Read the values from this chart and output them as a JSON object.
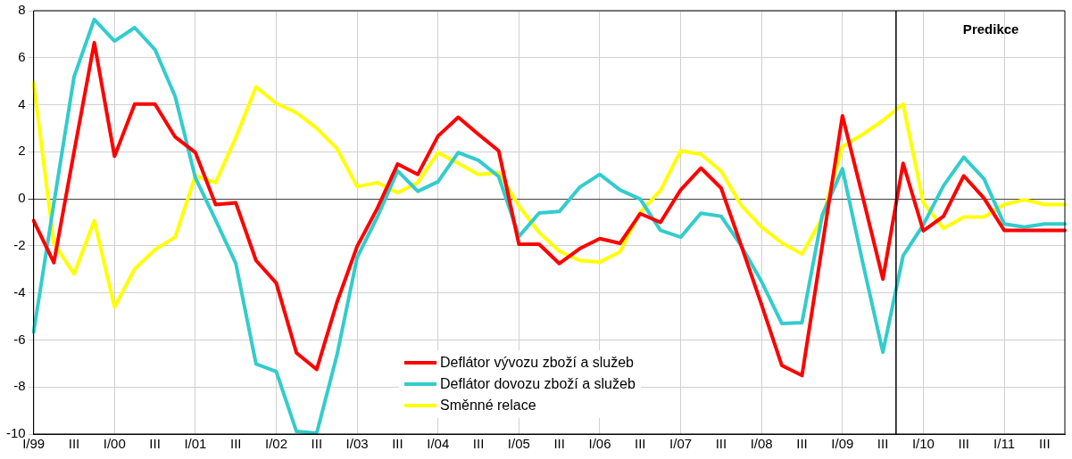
{
  "chart_data": {
    "type": "line",
    "categories": [
      "I/99",
      null,
      "III",
      null,
      "I/00",
      null,
      "III",
      null,
      "I/01",
      null,
      "III",
      null,
      "I/02",
      null,
      "III",
      null,
      "I/03",
      null,
      "III",
      null,
      "I/04",
      null,
      "III",
      null,
      "I/05",
      null,
      "III",
      null,
      "I/06",
      null,
      "III",
      null,
      "I/07",
      null,
      "III",
      null,
      "I/08",
      null,
      "III",
      null,
      "I/09",
      null,
      "III",
      null,
      "I/10",
      null,
      "III",
      null,
      "I/11",
      null,
      "III",
      null
    ],
    "series": [
      {
        "name": "Deflátor vývozu zboží a služeb",
        "color": "#ff0000",
        "values": [
          -0.93,
          -2.71,
          2.0,
          6.64,
          1.81,
          4.03,
          4.03,
          2.63,
          1.97,
          -0.24,
          -0.17,
          -2.62,
          -3.58,
          -6.55,
          -7.25,
          -4.4,
          -2.02,
          -0.4,
          1.48,
          1.04,
          2.67,
          3.47,
          2.74,
          2.04,
          -1.93,
          -1.93,
          -2.75,
          -2.12,
          -1.69,
          -1.89,
          -0.63,
          -1.0,
          0.38,
          1.31,
          0.46,
          -2.0,
          -4.5,
          -7.08,
          -7.51,
          -2.0,
          3.53,
          0.1,
          -3.41,
          1.51,
          -1.36,
          -0.74,
          0.98,
          0.03,
          -1.34,
          -1.34,
          -1.34,
          -1.34
        ]
      },
      {
        "name": "Deflátor dovozu zboží a služeb",
        "color": "#33cccc",
        "values": [
          -5.66,
          -0.2,
          5.19,
          7.63,
          6.71,
          7.28,
          6.35,
          4.35,
          0.89,
          -0.9,
          -2.75,
          -7.02,
          -7.34,
          -9.89,
          -9.96,
          -6.65,
          -2.49,
          -0.77,
          1.19,
          0.32,
          0.73,
          1.97,
          1.64,
          0.95,
          -1.6,
          -0.6,
          -0.54,
          0.49,
          1.04,
          0.38,
          -0.01,
          -1.34,
          -1.63,
          -0.61,
          -0.74,
          -2.0,
          -3.52,
          -5.3,
          -5.26,
          -0.7,
          1.28,
          -2.7,
          -6.52,
          -2.42,
          -1.1,
          0.56,
          1.77,
          0.85,
          -1.07,
          -1.2,
          -1.07,
          -1.07
        ]
      },
      {
        "name": "Směnné relace",
        "color": "#ffff00",
        "values": [
          4.92,
          -1.89,
          -3.19,
          -0.93,
          -4.6,
          -2.98,
          -2.16,
          -1.63,
          0.98,
          0.69,
          2.61,
          4.76,
          4.06,
          3.66,
          3.0,
          2.14,
          0.52,
          0.69,
          0.26,
          0.69,
          1.97,
          1.51,
          1.04,
          1.11,
          -0.3,
          -1.43,
          -2.22,
          -2.62,
          -2.69,
          -2.25,
          -0.57,
          0.36,
          2.04,
          1.9,
          1.18,
          -0.28,
          -1.2,
          -1.87,
          -2.35,
          -0.81,
          2.21,
          2.74,
          3.33,
          4.03,
          -0.17,
          -1.26,
          -0.77,
          -0.77,
          -0.24,
          -0.04,
          -0.24,
          -0.24
        ]
      }
    ],
    "ylim": [
      -10,
      8
    ],
    "yticks": [
      -10,
      -8,
      -6,
      -4,
      -2,
      0,
      2,
      4,
      6,
      8
    ],
    "annotations": [
      "Predikce"
    ],
    "grid": true,
    "legend": "bottom",
    "marker": "none",
    "line_style": "solid"
  }
}
